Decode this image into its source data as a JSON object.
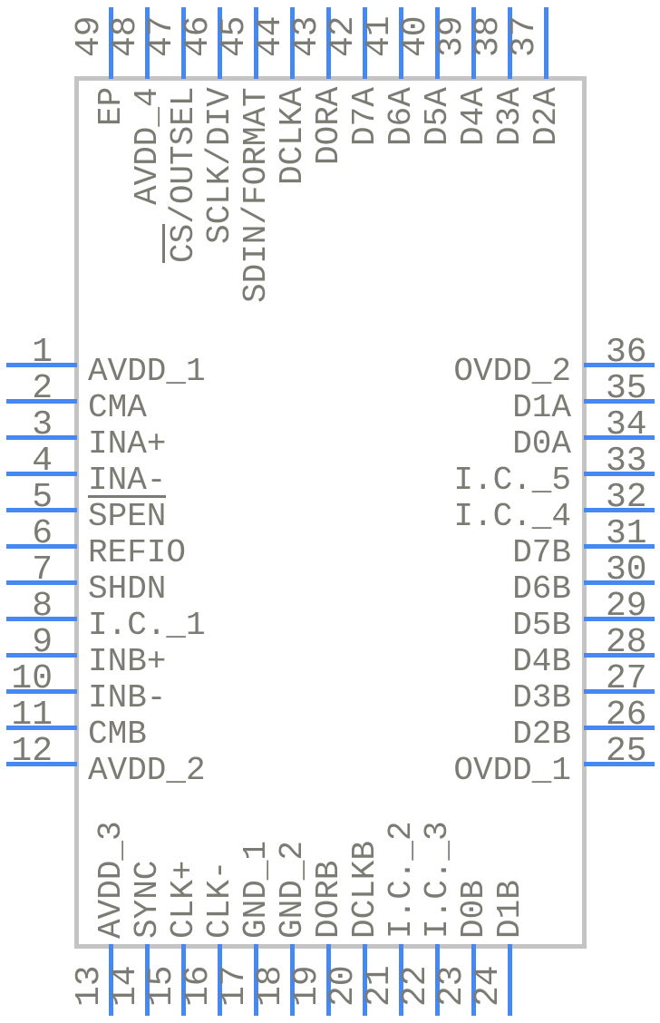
{
  "diagram": {
    "kind": "ic-package-pinout",
    "colors": {
      "pin": "#4688f1",
      "text": "#7b7b73",
      "body_border": "#c4c4c4",
      "background": "#ffffff"
    },
    "pins": {
      "top": [
        {
          "number": "49",
          "overline": "",
          "name": "EP"
        },
        {
          "number": "48",
          "overline": "",
          "name": "AVDD_4"
        },
        {
          "number": "47",
          "overline": "CS",
          "name": "/OUTSEL"
        },
        {
          "number": "46",
          "overline": "",
          "name": "SCLK/DIV"
        },
        {
          "number": "45",
          "overline": "",
          "name": "SDIN/FORMAT"
        },
        {
          "number": "44",
          "overline": "",
          "name": "DCLKA"
        },
        {
          "number": "43",
          "overline": "",
          "name": "DORA"
        },
        {
          "number": "42",
          "overline": "",
          "name": "D7A"
        },
        {
          "number": "41",
          "overline": "",
          "name": "D6A"
        },
        {
          "number": "40",
          "overline": "",
          "name": "D5A"
        },
        {
          "number": "39",
          "overline": "",
          "name": "D4A"
        },
        {
          "number": "38",
          "overline": "",
          "name": "D3A"
        },
        {
          "number": "37",
          "overline": "",
          "name": "D2A"
        }
      ],
      "left": [
        {
          "number": "1",
          "overline": "",
          "name": "AVDD_1"
        },
        {
          "number": "2",
          "overline": "",
          "name": "CMA"
        },
        {
          "number": "3",
          "overline": "",
          "name": "INA+"
        },
        {
          "number": "4",
          "overline": "",
          "name": "INA-"
        },
        {
          "number": "5",
          "overline": "SPEN",
          "name": ""
        },
        {
          "number": "6",
          "overline": "",
          "name": "REFIO"
        },
        {
          "number": "7",
          "overline": "",
          "name": "SHDN"
        },
        {
          "number": "8",
          "overline": "",
          "name": "I.C._1"
        },
        {
          "number": "9",
          "overline": "",
          "name": "INB+"
        },
        {
          "number": "10",
          "overline": "",
          "name": "INB-"
        },
        {
          "number": "11",
          "overline": "",
          "name": "CMB"
        },
        {
          "number": "12",
          "overline": "",
          "name": "AVDD_2"
        }
      ],
      "right": [
        {
          "number": "36",
          "overline": "",
          "name": "OVDD_2"
        },
        {
          "number": "35",
          "overline": "",
          "name": "D1A"
        },
        {
          "number": "34",
          "overline": "",
          "name": "D0A"
        },
        {
          "number": "33",
          "overline": "",
          "name": "I.C._5"
        },
        {
          "number": "32",
          "overline": "",
          "name": "I.C._4"
        },
        {
          "number": "31",
          "overline": "",
          "name": "D7B"
        },
        {
          "number": "30",
          "overline": "",
          "name": "D6B"
        },
        {
          "number": "29",
          "overline": "",
          "name": "D5B"
        },
        {
          "number": "28",
          "overline": "",
          "name": "D4B"
        },
        {
          "number": "27",
          "overline": "",
          "name": "D3B"
        },
        {
          "number": "26",
          "overline": "",
          "name": "D2B"
        },
        {
          "number": "25",
          "overline": "",
          "name": "OVDD_1"
        }
      ],
      "bottom": [
        {
          "number": "13",
          "overline": "",
          "name": "AVDD_3"
        },
        {
          "number": "14",
          "overline": "",
          "name": "SYNC"
        },
        {
          "number": "15",
          "overline": "",
          "name": "CLK+"
        },
        {
          "number": "16",
          "overline": "",
          "name": "CLK-"
        },
        {
          "number": "17",
          "overline": "",
          "name": "GND_1"
        },
        {
          "number": "18",
          "overline": "",
          "name": "GND_2"
        },
        {
          "number": "19",
          "overline": "",
          "name": "DORB"
        },
        {
          "number": "20",
          "overline": "",
          "name": "DCLKB"
        },
        {
          "number": "21",
          "overline": "",
          "name": "I.C._2"
        },
        {
          "number": "22",
          "overline": "",
          "name": "I.C._3"
        },
        {
          "number": "23",
          "overline": "",
          "name": "D0B"
        },
        {
          "number": "24",
          "overline": "",
          "name": "D1B"
        }
      ]
    }
  }
}
